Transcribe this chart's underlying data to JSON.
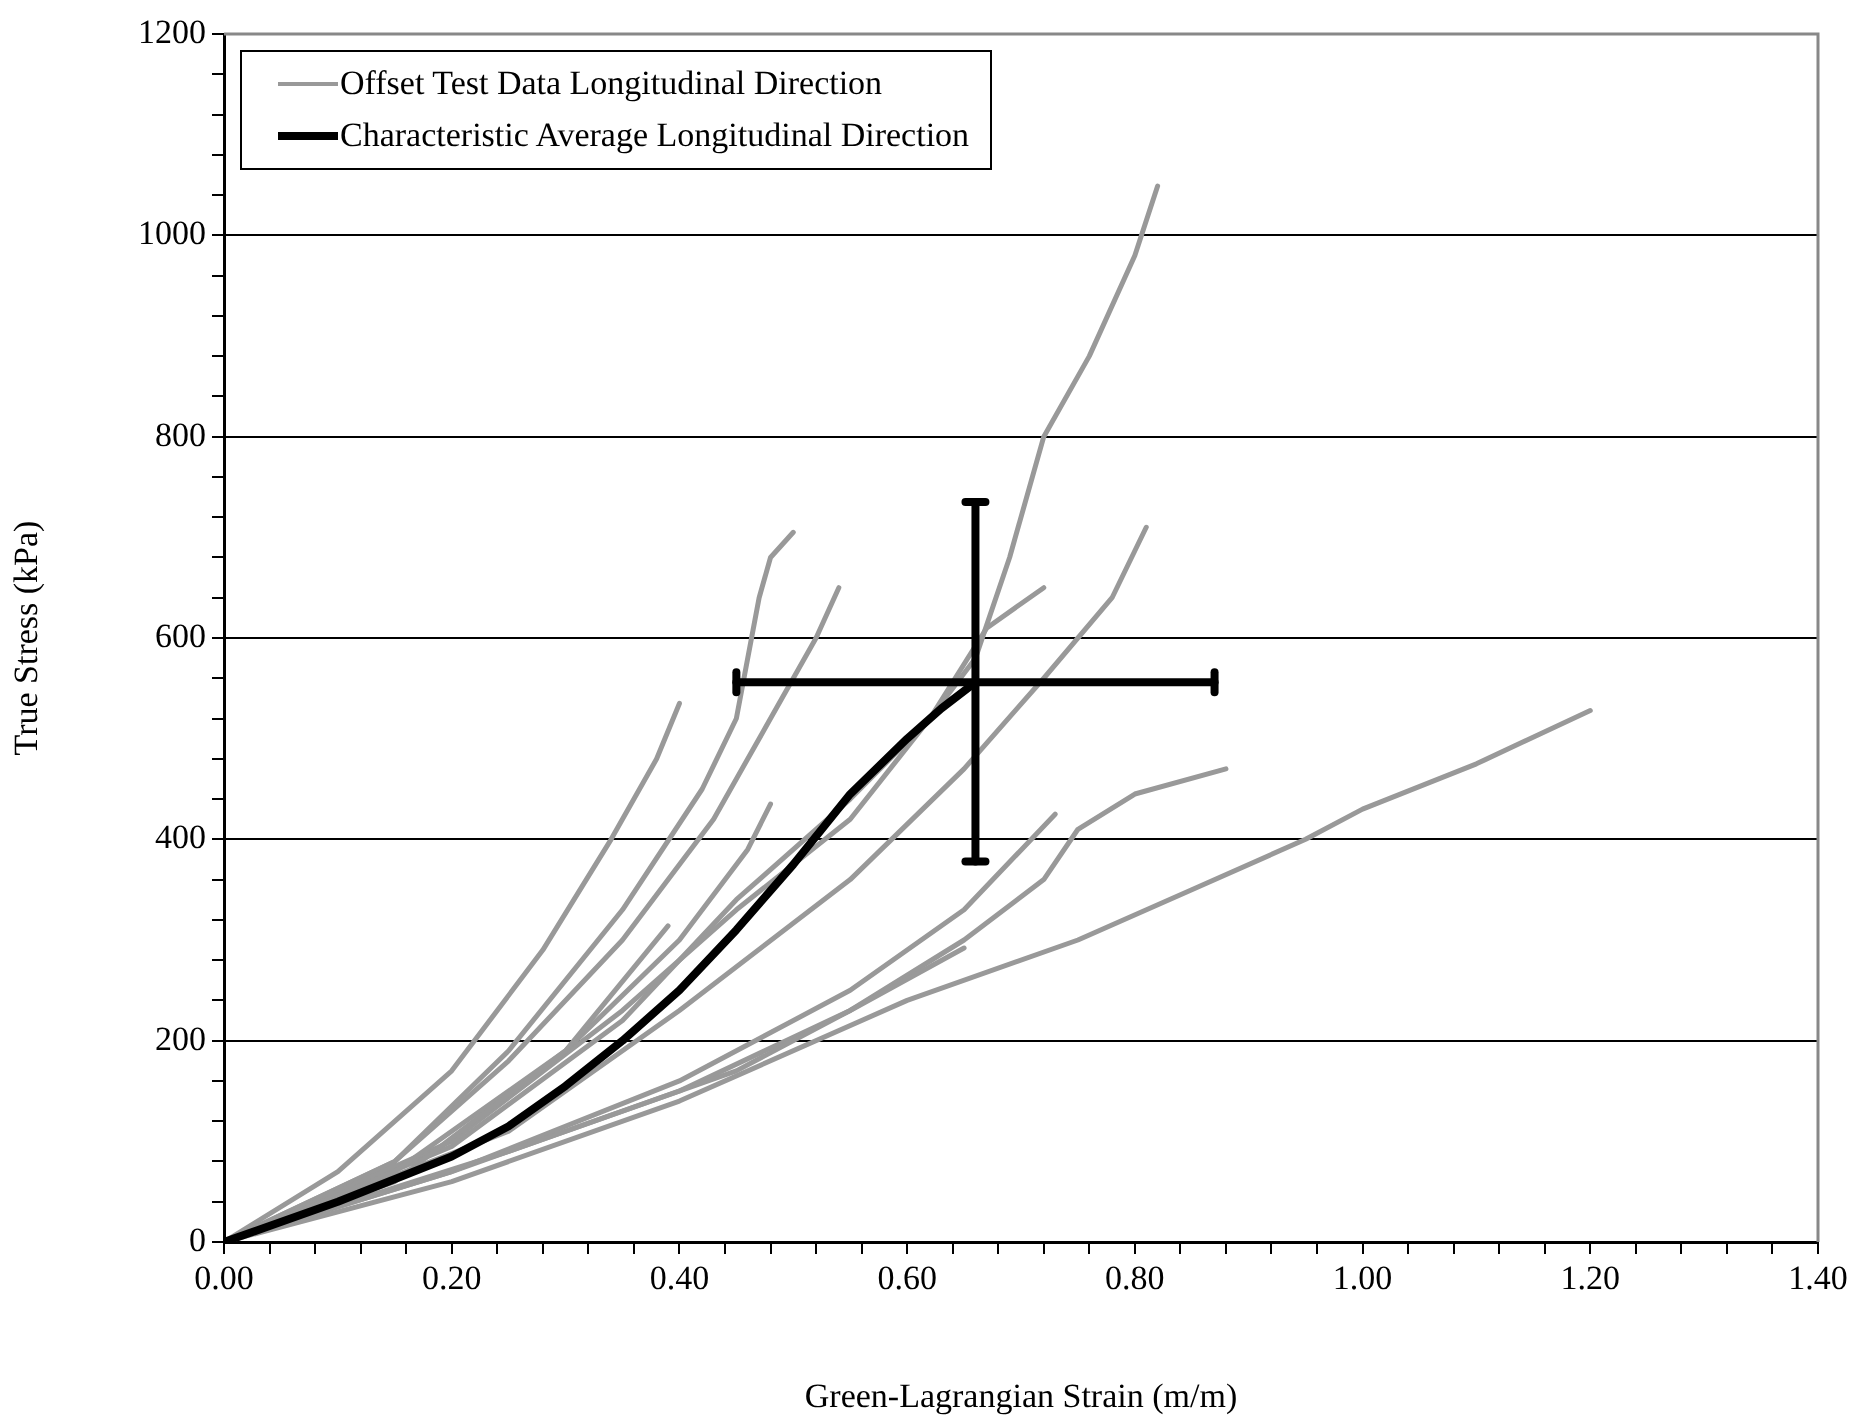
{
  "chart_data": {
    "type": "line",
    "xlabel": "Green-Lagrangian Strain (m/m)",
    "ylabel": "True Stress (kPa)",
    "xlim": [
      0,
      1.4
    ],
    "ylim": [
      0,
      1200
    ],
    "xticks": [
      {
        "value": 0,
        "label": "0.00"
      },
      {
        "value": 0.04,
        "label": null
      },
      {
        "value": 0.08,
        "label": null
      },
      {
        "value": 0.12,
        "label": null
      },
      {
        "value": 0.16,
        "label": null
      },
      {
        "value": 0.2,
        "label": "0.20"
      },
      {
        "value": 0.24,
        "label": null
      },
      {
        "value": 0.28,
        "label": null
      },
      {
        "value": 0.32,
        "label": null
      },
      {
        "value": 0.36,
        "label": null
      },
      {
        "value": 0.4,
        "label": "0.40"
      },
      {
        "value": 0.44,
        "label": null
      },
      {
        "value": 0.48,
        "label": null
      },
      {
        "value": 0.52,
        "label": null
      },
      {
        "value": 0.56,
        "label": null
      },
      {
        "value": 0.6,
        "label": "0.60"
      },
      {
        "value": 0.64,
        "label": null
      },
      {
        "value": 0.68,
        "label": null
      },
      {
        "value": 0.72,
        "label": null
      },
      {
        "value": 0.76,
        "label": null
      },
      {
        "value": 0.8,
        "label": "0.80"
      },
      {
        "value": 0.84,
        "label": null
      },
      {
        "value": 0.88,
        "label": null
      },
      {
        "value": 0.92,
        "label": null
      },
      {
        "value": 0.96,
        "label": null
      },
      {
        "value": 1,
        "label": "1.00"
      },
      {
        "value": 1.04,
        "label": null
      },
      {
        "value": 1.08,
        "label": null
      },
      {
        "value": 1.12,
        "label": null
      },
      {
        "value": 1.16,
        "label": null
      },
      {
        "value": 1.2,
        "label": "1.20"
      },
      {
        "value": 1.24,
        "label": null
      },
      {
        "value": 1.28,
        "label": null
      },
      {
        "value": 1.32,
        "label": null
      },
      {
        "value": 1.36,
        "label": null
      },
      {
        "value": 1.4,
        "label": "1.40"
      }
    ],
    "yticks": [
      0,
      {
        "value": 40,
        "label": null
      },
      {
        "value": 80,
        "label": null
      },
      {
        "value": 120,
        "label": null
      },
      {
        "value": 160,
        "label": null
      },
      200,
      {
        "value": 240,
        "label": null
      },
      {
        "value": 280,
        "label": null
      },
      {
        "value": 320,
        "label": null
      },
      {
        "value": 360,
        "label": null
      },
      400,
      {
        "value": 440,
        "label": null
      },
      {
        "value": 480,
        "label": null
      },
      {
        "value": 520,
        "label": null
      },
      {
        "value": 560,
        "label": null
      },
      600,
      {
        "value": 640,
        "label": null
      },
      {
        "value": 680,
        "label": null
      },
      {
        "value": 720,
        "label": null
      },
      {
        "value": 760,
        "label": null
      },
      800,
      {
        "value": 840,
        "label": null
      },
      {
        "value": 880,
        "label": null
      },
      {
        "value": 920,
        "label": null
      },
      {
        "value": 960,
        "label": null
      },
      1000,
      {
        "value": 1040,
        "label": null
      },
      {
        "value": 1080,
        "label": null
      },
      {
        "value": 1120,
        "label": null
      },
      {
        "value": 1160,
        "label": null
      },
      1200
    ],
    "grid": "y",
    "legend": "top left",
    "marker": "none",
    "line_style": "solid",
    "series": [
      {
        "name": "Offset Test Data Longitudinal Direction",
        "color": "#999999",
        "x": [
          0,
          0.2,
          0.35,
          0.45,
          0.55,
          0.62,
          0.66,
          0.69,
          0.72,
          0.76,
          0.8,
          0.82
        ],
        "values": [
          0,
          95,
          220,
          340,
          440,
          520,
          580,
          680,
          800,
          880,
          980,
          1049
        ]
      },
      {
        "color": "#999999",
        "x": [
          0,
          0.15,
          0.25,
          0.35,
          0.42,
          0.45,
          0.47,
          0.48,
          0.5
        ],
        "values": [
          0,
          80,
          190,
          330,
          450,
          520,
          640,
          680,
          705
        ]
      },
      {
        "color": "#999999",
        "x": [
          0,
          0.1,
          0.2,
          0.28,
          0.34,
          0.38,
          0.4
        ],
        "values": [
          0,
          70,
          170,
          290,
          400,
          480,
          535
        ]
      },
      {
        "color": "#999999",
        "x": [
          0,
          0.15,
          0.25,
          0.35,
          0.43,
          0.48,
          0.52,
          0.54
        ],
        "values": [
          0,
          80,
          180,
          300,
          420,
          520,
          600,
          650
        ]
      },
      {
        "color": "#999999",
        "x": [
          0,
          0.2,
          0.35,
          0.45,
          0.55,
          0.62,
          0.67,
          0.72
        ],
        "values": [
          0,
          100,
          230,
          330,
          420,
          520,
          610,
          650
        ]
      },
      {
        "color": "#999999",
        "x": [
          0,
          0.25,
          0.4,
          0.55,
          0.65,
          0.72,
          0.78,
          0.81
        ],
        "values": [
          0,
          110,
          230,
          360,
          470,
          560,
          640,
          710
        ]
      },
      {
        "color": "#999999",
        "x": [
          0,
          0.2,
          0.4,
          0.55,
          0.65,
          0.72,
          0.75,
          0.8,
          0.88
        ],
        "values": [
          0,
          70,
          150,
          230,
          300,
          360,
          410,
          445,
          470
        ]
      },
      {
        "color": "#999999",
        "x": [
          0,
          0.2,
          0.4,
          0.6,
          0.75,
          0.85,
          0.95,
          1,
          1.1,
          1.2
        ],
        "values": [
          0,
          60,
          140,
          240,
          300,
          350,
          400,
          430,
          475,
          528
        ]
      },
      {
        "color": "#999999",
        "x": [
          0,
          0.2,
          0.4,
          0.55,
          0.65,
          0.73
        ],
        "values": [
          0,
          70,
          160,
          250,
          330,
          425
        ]
      },
      {
        "color": "#999999",
        "x": [
          0,
          0.15,
          0.3,
          0.4,
          0.46,
          0.48
        ],
        "values": [
          0,
          70,
          190,
          300,
          390,
          435
        ]
      },
      {
        "color": "#999999",
        "x": [
          0,
          0.15,
          0.3,
          0.39
        ],
        "values": [
          0,
          60,
          190,
          314
        ]
      },
      {
        "color": "#999999",
        "x": [
          0,
          0.25,
          0.45,
          0.55,
          0.65
        ],
        "values": [
          0,
          90,
          170,
          230,
          292
        ]
      },
      {
        "name": "Characteristic Average Longitudinal Direction",
        "color": "#000000",
        "x": [
          0,
          0.1,
          0.2,
          0.25,
          0.3,
          0.35,
          0.4,
          0.45,
          0.5,
          0.55,
          0.6,
          0.63,
          0.66
        ],
        "values": [
          0,
          40,
          85,
          115,
          155,
          200,
          250,
          310,
          375,
          445,
          500,
          530,
          556
        ],
        "errors": [
          null,
          null,
          null,
          null,
          null,
          null,
          null,
          null,
          null,
          null,
          null,
          null,
          [
            378,
            735
          ]
        ],
        "xerrors": [
          null,
          null,
          null,
          null,
          null,
          null,
          null,
          null,
          null,
          null,
          null,
          null,
          [
            0.45,
            0.87
          ]
        ]
      }
    ]
  }
}
